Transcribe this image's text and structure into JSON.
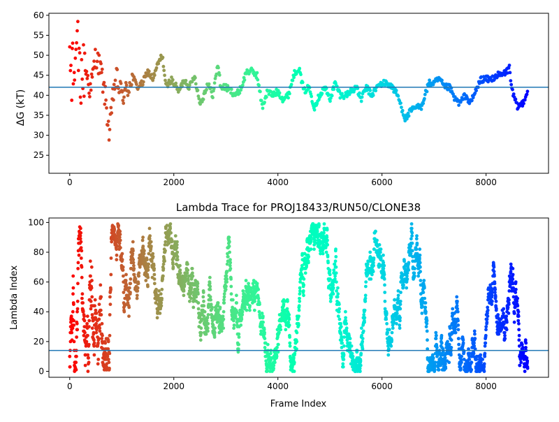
{
  "chart_data": [
    {
      "type": "scatter",
      "title": "",
      "xlabel": "",
      "ylabel": "ΔG (kT)",
      "xlim": [
        -400,
        9200
      ],
      "ylim": [
        20.5,
        60.5
      ],
      "xticks": [
        0,
        2000,
        4000,
        6000,
        8000
      ],
      "yticks": [
        25,
        30,
        35,
        40,
        45,
        50,
        55,
        60
      ],
      "hline": 42,
      "hline_color": "#1f77b4",
      "colormap": "rainbow (reversed: red at frame 0, purple at end)",
      "grid": false,
      "legend": "none",
      "n_frames": 8800,
      "series_trace": {
        "x": [
          0,
          50,
          100,
          150,
          200,
          300,
          400,
          500,
          600,
          700,
          760,
          800,
          850,
          900,
          1000,
          1100,
          1200,
          1300,
          1400,
          1500,
          1600,
          1700,
          1780,
          1850,
          1950,
          2000,
          2100,
          2200,
          2300,
          2400,
          2500,
          2550,
          2650,
          2750,
          2850,
          2900,
          3000,
          3100,
          3200,
          3300,
          3400,
          3500,
          3600,
          3700,
          3800,
          3900,
          4000,
          4100,
          4200,
          4300,
          4400,
          4500,
          4600,
          4700,
          4800,
          4900,
          5000,
          5100,
          5200,
          5300,
          5400,
          5500,
          5600,
          5700,
          5800,
          5900,
          6000,
          6100,
          6200,
          6300,
          6400,
          6450,
          6550,
          6650,
          6750,
          6900,
          7000,
          7100,
          7200,
          7300,
          7400,
          7500,
          7600,
          7700,
          7800,
          7900,
          8000,
          8100,
          8200,
          8300,
          8400,
          8450,
          8500,
          8600,
          8700,
          8800
        ],
        "y": [
          45,
          58,
          40,
          52,
          44,
          47,
          41,
          50,
          46,
          38,
          30,
          35,
          42,
          44,
          40,
          41,
          45,
          42,
          43,
          46,
          44,
          48,
          50,
          42,
          44,
          43,
          41,
          44,
          42,
          45,
          38,
          39,
          43,
          40,
          48,
          42,
          42,
          41,
          40,
          42,
          46,
          46,
          45,
          37,
          41,
          40,
          41,
          39,
          40,
          45,
          47,
          41,
          42,
          37,
          40,
          42,
          39,
          43,
          40,
          40,
          41,
          42,
          39,
          42,
          40,
          42,
          43,
          43,
          42,
          40,
          36,
          34,
          36,
          37,
          37,
          43,
          43,
          44,
          42,
          42,
          39,
          38,
          40,
          38,
          41,
          44,
          44,
          44,
          45,
          45,
          46,
          47,
          41,
          37,
          38,
          41
        ]
      }
    },
    {
      "type": "scatter",
      "title": "Lambda Trace for PROJ18433/RUN50/CLONE38",
      "xlabel": "Frame Index",
      "ylabel": "Lambda Index",
      "xlim": [
        -400,
        9200
      ],
      "ylim": [
        -4,
        103
      ],
      "xticks": [
        0,
        2000,
        4000,
        6000,
        8000
      ],
      "yticks": [
        0,
        20,
        40,
        60,
        80,
        100
      ],
      "hline": 14,
      "hline_color": "#1f77b4",
      "colormap": "rainbow (reversed: red at frame 0, purple at end)",
      "grid": false,
      "legend": "none",
      "lambda_range": [
        0,
        99
      ],
      "n_frames": 8800
    }
  ],
  "tick_text": {
    "x": [
      "0",
      "2000",
      "4000",
      "6000",
      "8000"
    ],
    "y_top": [
      "25",
      "30",
      "35",
      "40",
      "45",
      "50",
      "55",
      "60"
    ],
    "y_bottom": [
      "0",
      "20",
      "40",
      "60",
      "80",
      "100"
    ]
  }
}
